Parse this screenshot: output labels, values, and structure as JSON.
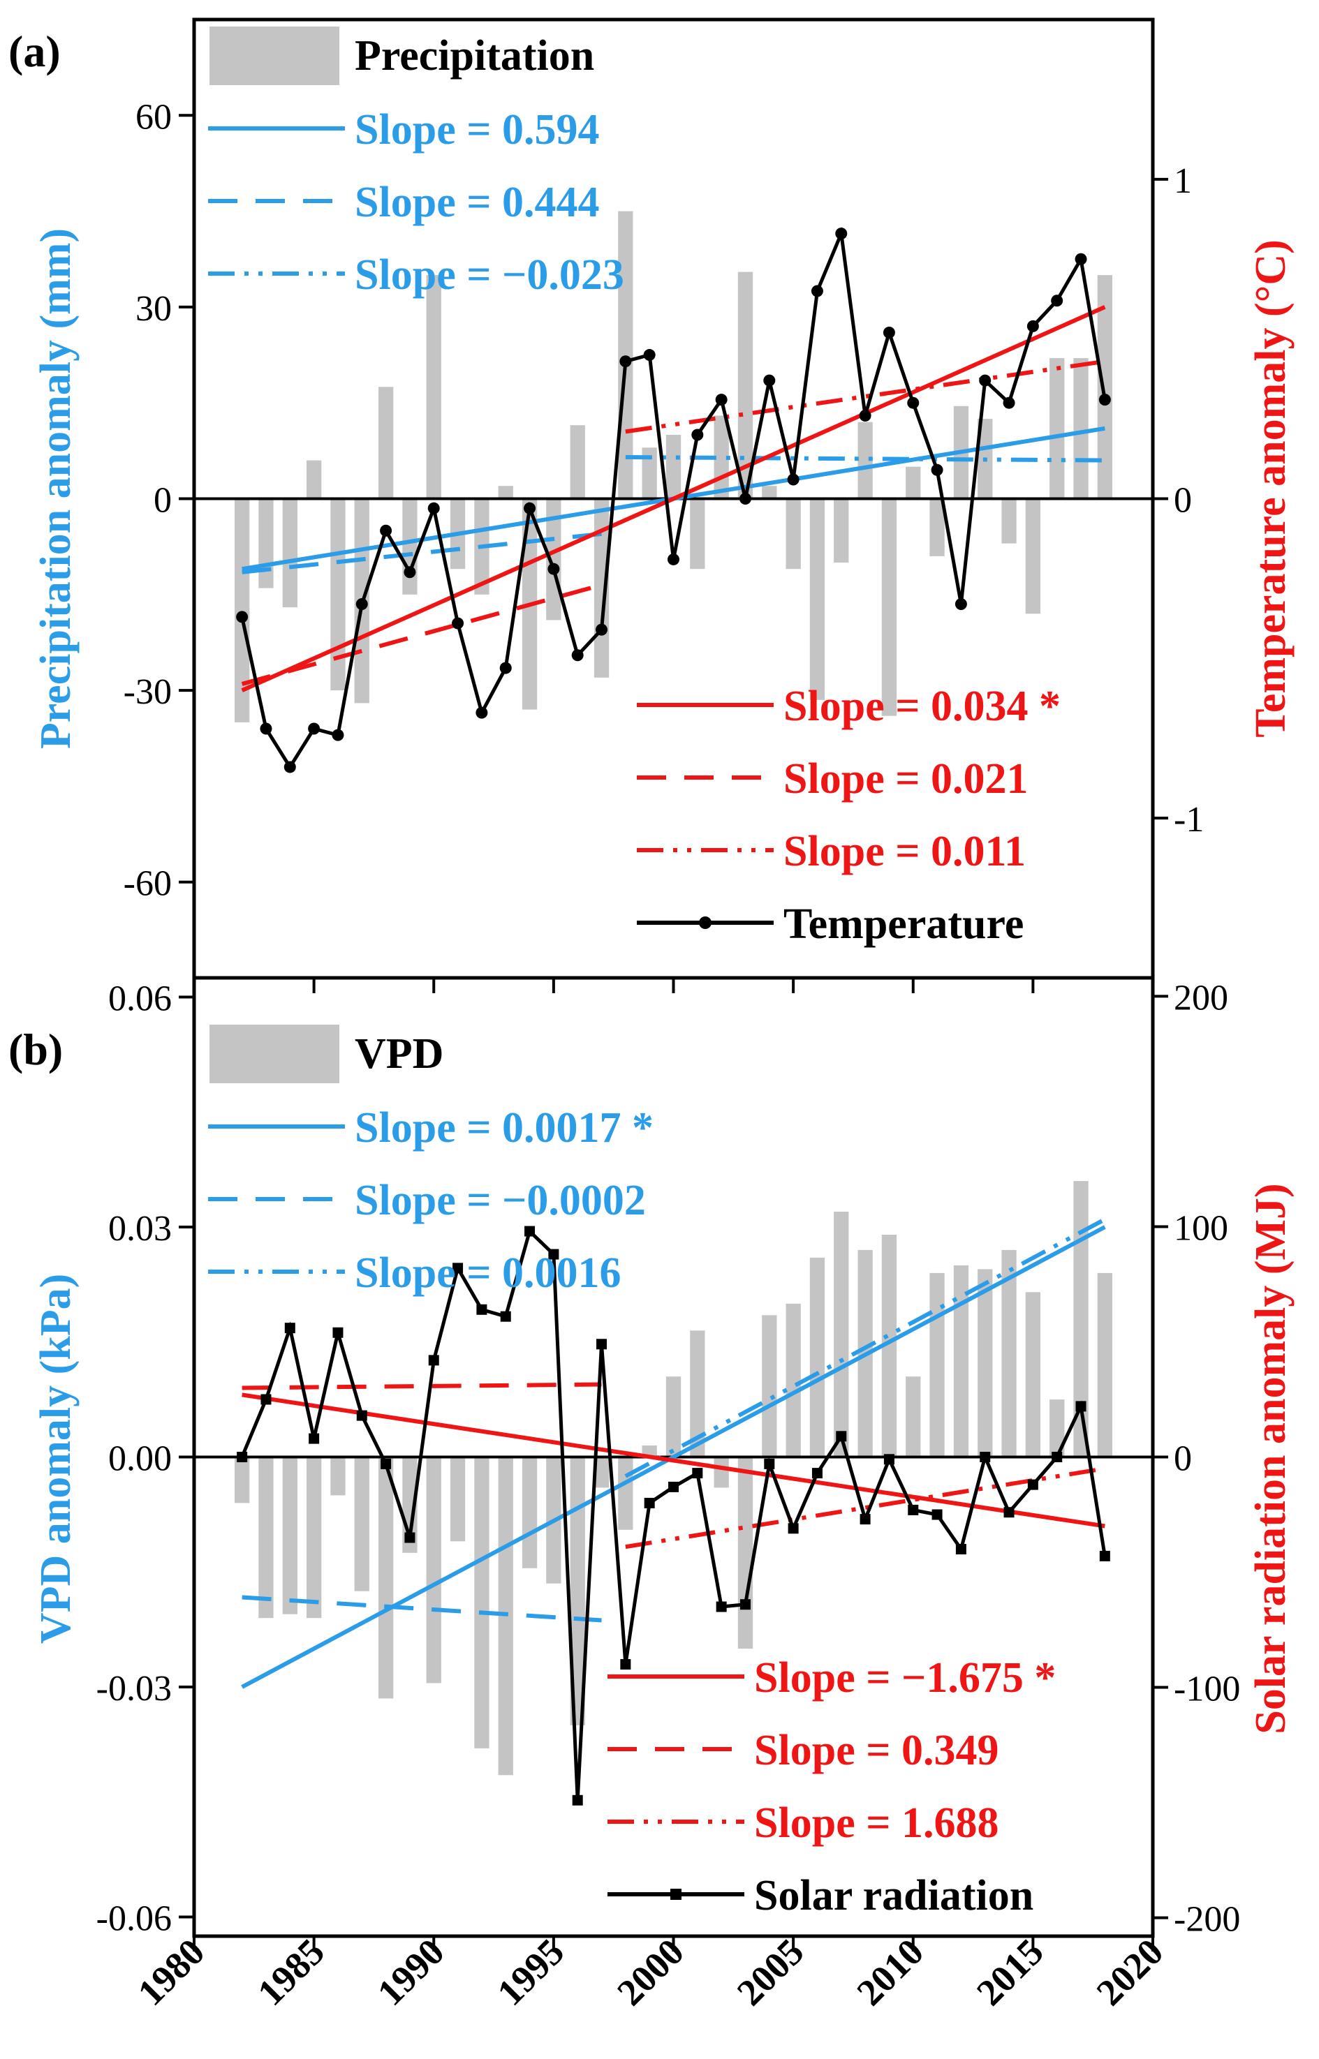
{
  "figure": {
    "x_tick_labels": [
      "1980",
      "1985",
      "1990",
      "1995",
      "2000",
      "2005",
      "2010",
      "2015",
      "2020"
    ]
  },
  "chart_data": [
    {
      "panel_label": "(a)",
      "type": "bar",
      "x": [
        1982,
        1983,
        1984,
        1985,
        1986,
        1987,
        1988,
        1989,
        1990,
        1991,
        1992,
        1993,
        1994,
        1995,
        1996,
        1997,
        1998,
        1999,
        2000,
        2001,
        2002,
        2003,
        2004,
        2005,
        2006,
        2007,
        2008,
        2009,
        2010,
        2011,
        2012,
        2013,
        2014,
        2015,
        2016,
        2017,
        2018
      ],
      "xlim": [
        1980,
        2020
      ],
      "left_axis": {
        "label": "Precipitation anomaly (mm)",
        "ylim": [
          -75,
          75
        ],
        "ticks": [
          60,
          30,
          0,
          -30,
          -60
        ],
        "tick_labels": [
          "60",
          "30",
          "0",
          "-30",
          "-60"
        ]
      },
      "right_axis": {
        "label": "Temperature anomaly (°C)",
        "ylim": [
          -1.5,
          1.5
        ],
        "ticks": [
          1,
          0,
          -1
        ],
        "tick_labels": [
          "1",
          "0",
          "-1"
        ]
      },
      "bars": {
        "name": "Precipitation",
        "axis": "left",
        "values": [
          -35,
          -14,
          -17,
          6,
          -30,
          -32,
          17.5,
          -15,
          35,
          -11,
          -15,
          2,
          -33,
          -19,
          11.5,
          -28,
          45,
          8,
          10,
          -11,
          13,
          35.5,
          2,
          -11,
          -31.5,
          -10,
          12,
          -34,
          5,
          -9,
          14.5,
          12.5,
          -7,
          -18,
          22,
          22,
          35
        ]
      },
      "line": {
        "name": "Temperature",
        "axis": "right",
        "marker": "circle",
        "values": [
          -0.37,
          -0.72,
          -0.84,
          -0.72,
          -0.74,
          -0.33,
          -0.1,
          -0.23,
          -0.03,
          -0.39,
          -0.67,
          -0.53,
          -0.03,
          -0.22,
          -0.49,
          -0.41,
          0.43,
          0.45,
          -0.19,
          0.2,
          0.31,
          0.0,
          0.37,
          0.06,
          0.65,
          0.83,
          0.26,
          0.52,
          0.3,
          0.09,
          -0.33,
          0.37,
          0.3,
          0.54,
          0.62,
          0.75,
          0.31
        ]
      },
      "trend_lines": [
        {
          "series": "Precipitation",
          "style": "solid",
          "axis": "left",
          "x": [
            1982,
            2018
          ],
          "y": [
            -11,
            11
          ],
          "label": "Slope = 0.594"
        },
        {
          "series": "Precipitation",
          "style": "dash",
          "axis": "left",
          "x": [
            1982,
            1997
          ],
          "y": [
            -11.5,
            -5.5
          ],
          "label": "Slope = 0.444"
        },
        {
          "series": "Precipitation",
          "style": "dashdotdot",
          "axis": "left",
          "x": [
            1998,
            2018
          ],
          "y": [
            6.5,
            6
          ],
          "label": "Slope = −0.023"
        },
        {
          "series": "Temperature",
          "style": "solid",
          "axis": "right",
          "x": [
            1982,
            2018
          ],
          "y": [
            -0.6,
            0.6
          ],
          "label": "Slope = 0.034 *"
        },
        {
          "series": "Temperature",
          "style": "dash",
          "axis": "right",
          "x": [
            1982,
            1997
          ],
          "y": [
            -0.58,
            -0.27
          ],
          "label": "Slope = 0.021"
        },
        {
          "series": "Temperature",
          "style": "dashdotdot",
          "axis": "right",
          "x": [
            1998,
            2018
          ],
          "y": [
            0.21,
            0.43
          ],
          "label": "Slope = 0.011"
        }
      ],
      "legend_top": [
        "Precipitation",
        "Slope = 0.594",
        "Slope = 0.444",
        "Slope = −0.023"
      ],
      "legend_bottom": [
        "Slope = 0.034 *",
        "Slope = 0.021",
        "Slope = 0.011",
        "Temperature"
      ]
    },
    {
      "panel_label": "(b)",
      "type": "bar",
      "x": [
        1982,
        1983,
        1984,
        1985,
        1986,
        1987,
        1988,
        1989,
        1990,
        1991,
        1992,
        1993,
        1994,
        1995,
        1996,
        1997,
        1998,
        1999,
        2000,
        2001,
        2002,
        2003,
        2004,
        2005,
        2006,
        2007,
        2008,
        2009,
        2010,
        2011,
        2012,
        2013,
        2014,
        2015,
        2016,
        2017,
        2018
      ],
      "xlim": [
        1980,
        2020
      ],
      "xlabel_ticks": [
        "1980",
        "1985",
        "1990",
        "1995",
        "2000",
        "2005",
        "2010",
        "2015",
        "2020"
      ],
      "left_axis": {
        "label": "VPD anomaly (kPa)",
        "ylim": [
          -0.0625,
          0.0625
        ],
        "ticks": [
          0.06,
          0.03,
          0.0,
          -0.03,
          -0.06
        ],
        "tick_labels": [
          "0.06",
          "0.03",
          "0.00",
          "-0.03",
          "-0.06"
        ]
      },
      "right_axis": {
        "label": "Solar radiation anomaly (MJ)",
        "ylim": [
          -208,
          208
        ],
        "ticks": [
          200,
          100,
          0,
          -100,
          -200
        ],
        "tick_labels": [
          "200",
          "100",
          "0",
          "-100",
          "-200"
        ]
      },
      "bars": {
        "name": "VPD",
        "axis": "left",
        "values": [
          -0.006,
          -0.021,
          -0.0205,
          -0.021,
          -0.005,
          -0.0175,
          -0.0315,
          -0.0125,
          -0.0295,
          -0.011,
          -0.038,
          -0.0415,
          -0.0145,
          -0.0165,
          -0.035,
          -0.004,
          -0.0095,
          0.0015,
          0.0105,
          0.0165,
          -0.004,
          -0.025,
          0.0185,
          0.02,
          0.026,
          0.032,
          0.027,
          0.029,
          0.0105,
          0.024,
          0.025,
          0.0245,
          0.027,
          0.0215,
          0.0075,
          0.036,
          0.024
        ]
      },
      "line": {
        "name": "Solar radiation",
        "axis": "right",
        "marker": "square",
        "values": [
          0,
          25,
          56,
          8,
          54,
          18,
          -3,
          -35,
          42,
          82,
          64,
          61,
          98,
          88,
          -149,
          49,
          -90,
          -20,
          -13,
          -7,
          -65,
          -64,
          -3,
          -31,
          -7,
          9,
          -27,
          -1,
          -23,
          -25,
          -40,
          0,
          -24,
          -12,
          0,
          22,
          -43
        ]
      },
      "trend_lines": [
        {
          "series": "VPD",
          "style": "solid",
          "axis": "left",
          "x": [
            1982,
            2018
          ],
          "y": [
            -0.03,
            0.03
          ],
          "label": "Slope = 0.0017 *"
        },
        {
          "series": "VPD",
          "style": "dash",
          "axis": "left",
          "x": [
            1982,
            1997
          ],
          "y": [
            -0.0183,
            -0.0213
          ],
          "label": "Slope = −0.0002"
        },
        {
          "series": "VPD",
          "style": "dashdotdot",
          "axis": "left",
          "x": [
            1998,
            2018
          ],
          "y": [
            -0.0025,
            0.031
          ],
          "label": "Slope = 0.0016"
        },
        {
          "series": "Solar radiation",
          "style": "solid",
          "axis": "right",
          "x": [
            1982,
            2018
          ],
          "y": [
            27,
            -30
          ],
          "label": "Slope = −1.675 *"
        },
        {
          "series": "Solar radiation",
          "style": "dash",
          "axis": "right",
          "x": [
            1982,
            1997
          ],
          "y": [
            30,
            31.5
          ],
          "label": "Slope = 0.349"
        },
        {
          "series": "Solar radiation",
          "style": "dashdotdot",
          "axis": "right",
          "x": [
            1998,
            2018
          ],
          "y": [
            -39,
            -5
          ],
          "label": "Slope = 1.688"
        }
      ],
      "legend_top": [
        "VPD",
        "Slope = 0.0017 *",
        "Slope = −0.0002",
        "Slope = 0.0016"
      ],
      "legend_bottom": [
        "Slope = −1.675 *",
        "Slope = 0.349",
        "Slope = 1.688",
        "Solar radiation"
      ]
    }
  ],
  "colors": {
    "blue": "#2b9de8",
    "red": "#f01515",
    "bar": "#c4c4c4",
    "axis": "#000000"
  }
}
